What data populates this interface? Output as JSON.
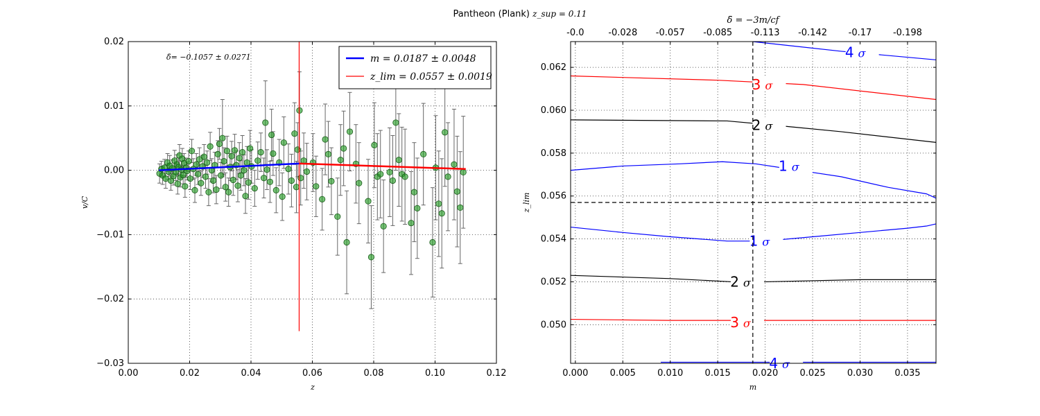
{
  "figure": {
    "title_text": "Pantheon (Plank)",
    "title_math": "z_sup = 0.11"
  },
  "chart_data": [
    {
      "type": "scatter",
      "ylabel": "v/C",
      "xlabel": "z",
      "annotation": "δ̄= −0.1057 ± 0.0271",
      "xlim": [
        0.0,
        0.12
      ],
      "ylim": [
        -0.03,
        0.02
      ],
      "xticks": [
        "0.00",
        "0.02",
        "0.04",
        "0.06",
        "0.08",
        "0.10",
        "0.12"
      ],
      "yticks": [
        "0.02",
        "0.01",
        "0.00",
        "−0.01",
        "−0.02",
        "−0.03"
      ],
      "grid": true,
      "legend_position": "top-right",
      "legend": [
        {
          "label": "m = 0.0187 ± 0.0048",
          "color": "#0000ff"
        },
        {
          "label": "z_lim = 0.0557 ± 0.0019",
          "color": "#ff0000"
        }
      ],
      "vline_x": 0.0557,
      "vline_range": [
        -0.025,
        0.02
      ],
      "fit_lines": [
        {
          "color": "#0000ff",
          "x": [
            0.01,
            0.0557
          ],
          "y": [
            0.0,
            0.00105
          ]
        },
        {
          "color": "#ff0000",
          "x": [
            0.0557,
            0.11
          ],
          "y": [
            0.00105,
            0.0002
          ]
        }
      ],
      "points": [
        [
          0.0102,
          -0.0005,
          0.0015
        ],
        [
          0.0108,
          0.0002,
          0.0012
        ],
        [
          0.0112,
          -0.0008,
          0.0014
        ],
        [
          0.0118,
          0.0004,
          0.0013
        ],
        [
          0.0122,
          -0.0013,
          0.0015
        ],
        [
          0.0128,
          0.0012,
          0.0014
        ],
        [
          0.0131,
          -0.0002,
          0.0012
        ],
        [
          0.0135,
          0.0007,
          0.0016
        ],
        [
          0.0139,
          -0.0016,
          0.0015
        ],
        [
          0.0143,
          0.0003,
          0.0013
        ],
        [
          0.0147,
          -0.0009,
          0.0014
        ],
        [
          0.0151,
          0.0015,
          0.0016
        ],
        [
          0.0155,
          -0.0003,
          0.0013
        ],
        [
          0.0158,
          0.0009,
          0.0015
        ],
        [
          0.0161,
          -0.0021,
          0.0016
        ],
        [
          0.0164,
          0.0005,
          0.0014
        ],
        [
          0.0167,
          0.0023,
          0.0017
        ],
        [
          0.017,
          -0.0011,
          0.0015
        ],
        [
          0.0173,
          0.0001,
          0.0013
        ],
        [
          0.0176,
          0.0018,
          0.0016
        ],
        [
          0.0179,
          -0.0007,
          0.0014
        ],
        [
          0.0182,
          0.0011,
          0.0015
        ],
        [
          0.0185,
          -0.0025,
          0.0017
        ],
        [
          0.0188,
          0.0004,
          0.0015
        ],
        [
          0.0192,
          -0.0001,
          0.0014
        ],
        [
          0.0197,
          0.0014,
          0.0016
        ],
        [
          0.0202,
          -0.0013,
          0.0017
        ],
        [
          0.0207,
          0.003,
          0.0018
        ],
        [
          0.0212,
          0.0002,
          0.0016
        ],
        [
          0.0217,
          -0.0031,
          0.0019
        ],
        [
          0.0222,
          0.0009,
          0.0017
        ],
        [
          0.0227,
          -0.0006,
          0.0016
        ],
        [
          0.0232,
          0.0017,
          0.0018
        ],
        [
          0.0237,
          -0.002,
          0.0019
        ],
        [
          0.0242,
          0.0006,
          0.0017
        ],
        [
          0.0247,
          0.0021,
          0.0019
        ],
        [
          0.0252,
          -0.001,
          0.0018
        ],
        [
          0.0257,
          0.0012,
          0.0018
        ],
        [
          0.0262,
          -0.0034,
          0.0021
        ],
        [
          0.0267,
          0.0037,
          0.0022
        ],
        [
          0.0272,
          0.0,
          0.0018
        ],
        [
          0.0277,
          -0.0016,
          0.0019
        ],
        [
          0.0282,
          0.0008,
          0.002
        ],
        [
          0.0287,
          -0.003,
          0.0022
        ],
        [
          0.0292,
          0.0025,
          0.0021
        ],
        [
          0.0297,
          0.0041,
          0.0024
        ],
        [
          0.0302,
          -0.0008,
          0.002
        ],
        [
          0.0307,
          0.005,
          0.006
        ],
        [
          0.0312,
          0.0014,
          0.0021
        ],
        [
          0.0317,
          -0.0026,
          0.0022
        ],
        [
          0.0322,
          0.003,
          0.0023
        ],
        [
          0.0327,
          -0.0034,
          0.0022
        ],
        [
          0.0332,
          0.0005,
          0.0021
        ],
        [
          0.0337,
          0.0022,
          0.0023
        ],
        [
          0.0342,
          -0.0015,
          0.0024
        ],
        [
          0.0347,
          0.0031,
          0.0025
        ],
        [
          0.0352,
          0.0008,
          0.0022
        ],
        [
          0.0357,
          -0.0024,
          0.0025
        ],
        [
          0.0362,
          0.0019,
          0.0024
        ],
        [
          0.0367,
          -0.0008,
          0.0023
        ],
        [
          0.0372,
          0.0028,
          0.0026
        ],
        [
          0.0377,
          0.0,
          0.0024
        ],
        [
          0.0382,
          -0.004,
          0.0027
        ],
        [
          0.0387,
          0.0012,
          0.0025
        ],
        [
          0.0392,
          -0.0019,
          0.0026
        ],
        [
          0.0397,
          0.0034,
          0.0028
        ],
        [
          0.0402,
          0.0006,
          0.0026
        ],
        [
          0.0412,
          -0.0028,
          0.0028
        ],
        [
          0.0422,
          0.0015,
          0.0029
        ],
        [
          0.0432,
          0.0028,
          0.003
        ],
        [
          0.0442,
          -0.0012,
          0.0031
        ],
        [
          0.0447,
          0.0074,
          0.0065
        ],
        [
          0.0452,
          0.0001,
          0.0031
        ],
        [
          0.0462,
          -0.0018,
          0.0032
        ],
        [
          0.0467,
          0.0055,
          0.004
        ],
        [
          0.0472,
          0.0026,
          0.0034
        ],
        [
          0.0482,
          -0.0031,
          0.0035
        ],
        [
          0.0492,
          0.0012,
          0.0036
        ],
        [
          0.0502,
          -0.0041,
          0.0037
        ],
        [
          0.0507,
          0.0043,
          0.004
        ],
        [
          0.0522,
          0.0002,
          0.0039
        ],
        [
          0.0532,
          -0.0016,
          0.0041
        ],
        [
          0.0542,
          0.0057,
          0.0048
        ],
        [
          0.0548,
          -0.0026,
          0.004
        ],
        [
          0.0552,
          0.0032,
          0.0042
        ],
        [
          0.0558,
          0.0093,
          0.006
        ],
        [
          0.0562,
          -0.0012,
          0.0042
        ],
        [
          0.0572,
          0.0015,
          0.0043
        ],
        [
          0.0582,
          -0.0002,
          0.0044
        ],
        [
          0.0602,
          0.0012,
          0.0045
        ],
        [
          0.0612,
          -0.0025,
          0.0047
        ],
        [
          0.0632,
          -0.0045,
          0.0048
        ],
        [
          0.0642,
          0.0048,
          0.0055
        ],
        [
          0.0652,
          0.0025,
          0.0051
        ],
        [
          0.0662,
          -0.0017,
          0.0052
        ],
        [
          0.0682,
          -0.0072,
          0.006
        ],
        [
          0.0692,
          0.0016,
          0.0055
        ],
        [
          0.0702,
          0.0034,
          0.0058
        ],
        [
          0.0712,
          -0.0112,
          0.008
        ],
        [
          0.0722,
          0.006,
          0.0061
        ],
        [
          0.0742,
          0.001,
          0.0061
        ],
        [
          0.0752,
          -0.002,
          0.0063
        ],
        [
          0.0782,
          -0.0048,
          0.0065
        ],
        [
          0.0792,
          -0.0135,
          0.008
        ],
        [
          0.0802,
          0.0039,
          0.0066
        ],
        [
          0.0812,
          -0.001,
          0.0067
        ],
        [
          0.0822,
          -0.0006,
          0.0068
        ],
        [
          0.0832,
          -0.0087,
          0.0072
        ],
        [
          0.0852,
          -0.0003,
          0.0069
        ],
        [
          0.0862,
          -0.0016,
          0.007
        ],
        [
          0.0872,
          0.0074,
          0.0074
        ],
        [
          0.0882,
          0.0016,
          0.0072
        ],
        [
          0.0892,
          -0.0006,
          0.0073
        ],
        [
          0.0902,
          -0.001,
          0.0074
        ],
        [
          0.0922,
          -0.0082,
          0.008
        ],
        [
          0.0932,
          -0.0034,
          0.0077
        ],
        [
          0.0942,
          -0.0059,
          0.0078
        ],
        [
          0.0962,
          0.0025,
          0.0079
        ],
        [
          0.0992,
          -0.0112,
          0.0085
        ],
        [
          0.1002,
          0.0004,
          0.0081
        ],
        [
          0.1012,
          -0.0052,
          0.0082
        ],
        [
          0.1022,
          -0.0067,
          0.0085
        ],
        [
          0.1032,
          0.0059,
          0.0084
        ],
        [
          0.1042,
          -0.001,
          0.0084
        ],
        [
          0.1062,
          0.0009,
          0.0086
        ],
        [
          0.1072,
          -0.0033,
          0.0086
        ],
        [
          0.1082,
          -0.0058,
          0.0087
        ],
        [
          0.1092,
          -0.0003,
          0.0087
        ]
      ]
    },
    {
      "type": "line",
      "xlabel": "m",
      "ylabel": "z_lim",
      "top_xlabel": "δ̄ = −3m/cf",
      "xlim": [
        -0.0005,
        0.038
      ],
      "ylim": [
        0.0482,
        0.0632
      ],
      "xticks": [
        "0.000",
        "0.005",
        "0.010",
        "0.015",
        "0.020",
        "0.025",
        "0.030",
        "0.035"
      ],
      "yticks": [
        "0.062",
        "0.060",
        "0.058",
        "0.056",
        "0.054",
        "0.052",
        "0.050"
      ],
      "top_xticks": [
        "-0.0",
        "-0.028",
        "-0.057",
        "-0.085",
        "-0.113",
        "-0.142",
        "-0.17",
        "-0.198"
      ],
      "grid": true,
      "vline_x": 0.0187,
      "hline_y": 0.0557,
      "contours": [
        {
          "label": "4",
          "sigma": "σ",
          "color": "#0000ff",
          "x": [
            0.0187,
            0.028,
            0.038
          ],
          "y": [
            0.0632,
            0.06275,
            0.06235
          ],
          "label_at": [
            0.0295,
            0.0627
          ]
        },
        {
          "label": "3",
          "sigma": "σ",
          "color": "#ff0000",
          "x": [
            -0.0005,
            0.015,
            0.024,
            0.038
          ],
          "y": [
            0.0616,
            0.0614,
            0.0612,
            0.0605
          ],
          "label_at": [
            0.0197,
            0.0612
          ]
        },
        {
          "label": "2",
          "sigma": "σ",
          "color": "#000000",
          "x": [
            -0.0005,
            0.016,
            0.021,
            0.028,
            0.038
          ],
          "y": [
            0.05955,
            0.0595,
            0.0593,
            0.059,
            0.0585
          ],
          "label_at": [
            0.0197,
            0.0593
          ]
        },
        {
          "label": "1",
          "sigma": "σ",
          "color": "#0000ff",
          "x": [
            -0.0005,
            0.005,
            0.011,
            0.0155,
            0.019,
            0.022,
            0.028,
            0.033,
            0.037,
            0.038
          ],
          "y": [
            0.0572,
            0.0574,
            0.0575,
            0.0576,
            0.0575,
            0.0573,
            0.0569,
            0.0564,
            0.0561,
            0.0559
          ],
          "label_at": [
            0.0225,
            0.0574
          ]
        },
        {
          "label": "1",
          "sigma": "σ",
          "color": "#0000ff",
          "x": [
            -0.0005,
            0.005,
            0.01,
            0.016,
            0.02,
            0.025,
            0.03,
            0.035,
            0.037,
            0.038
          ],
          "y": [
            0.05455,
            0.0543,
            0.0541,
            0.0539,
            0.0539,
            0.0541,
            0.0543,
            0.0545,
            0.0546,
            0.0547
          ],
          "label_at": [
            0.0194,
            0.0539
          ]
        },
        {
          "label": "2",
          "sigma": "σ",
          "color": "#000000",
          "x": [
            -0.0005,
            0.01,
            0.0165,
            0.02,
            0.03,
            0.038
          ],
          "y": [
            0.0523,
            0.05215,
            0.052,
            0.052,
            0.0521,
            0.0521
          ],
          "label_at": [
            0.0174,
            0.052
          ]
        },
        {
          "label": "3",
          "sigma": "σ",
          "color": "#ff0000",
          "x": [
            -0.0005,
            0.01,
            0.015,
            0.02,
            0.03,
            0.038
          ],
          "y": [
            0.05025,
            0.0502,
            0.0502,
            0.0502,
            0.0502,
            0.0502
          ],
          "label_at": [
            0.0174,
            0.0501
          ]
        },
        {
          "label": "4",
          "sigma": "σ",
          "color": "#0000ff",
          "x": [
            0.009,
            0.038
          ],
          "y": [
            0.04825,
            0.04825
          ],
          "label_at": [
            0.0215,
            0.0482
          ]
        }
      ]
    }
  ]
}
